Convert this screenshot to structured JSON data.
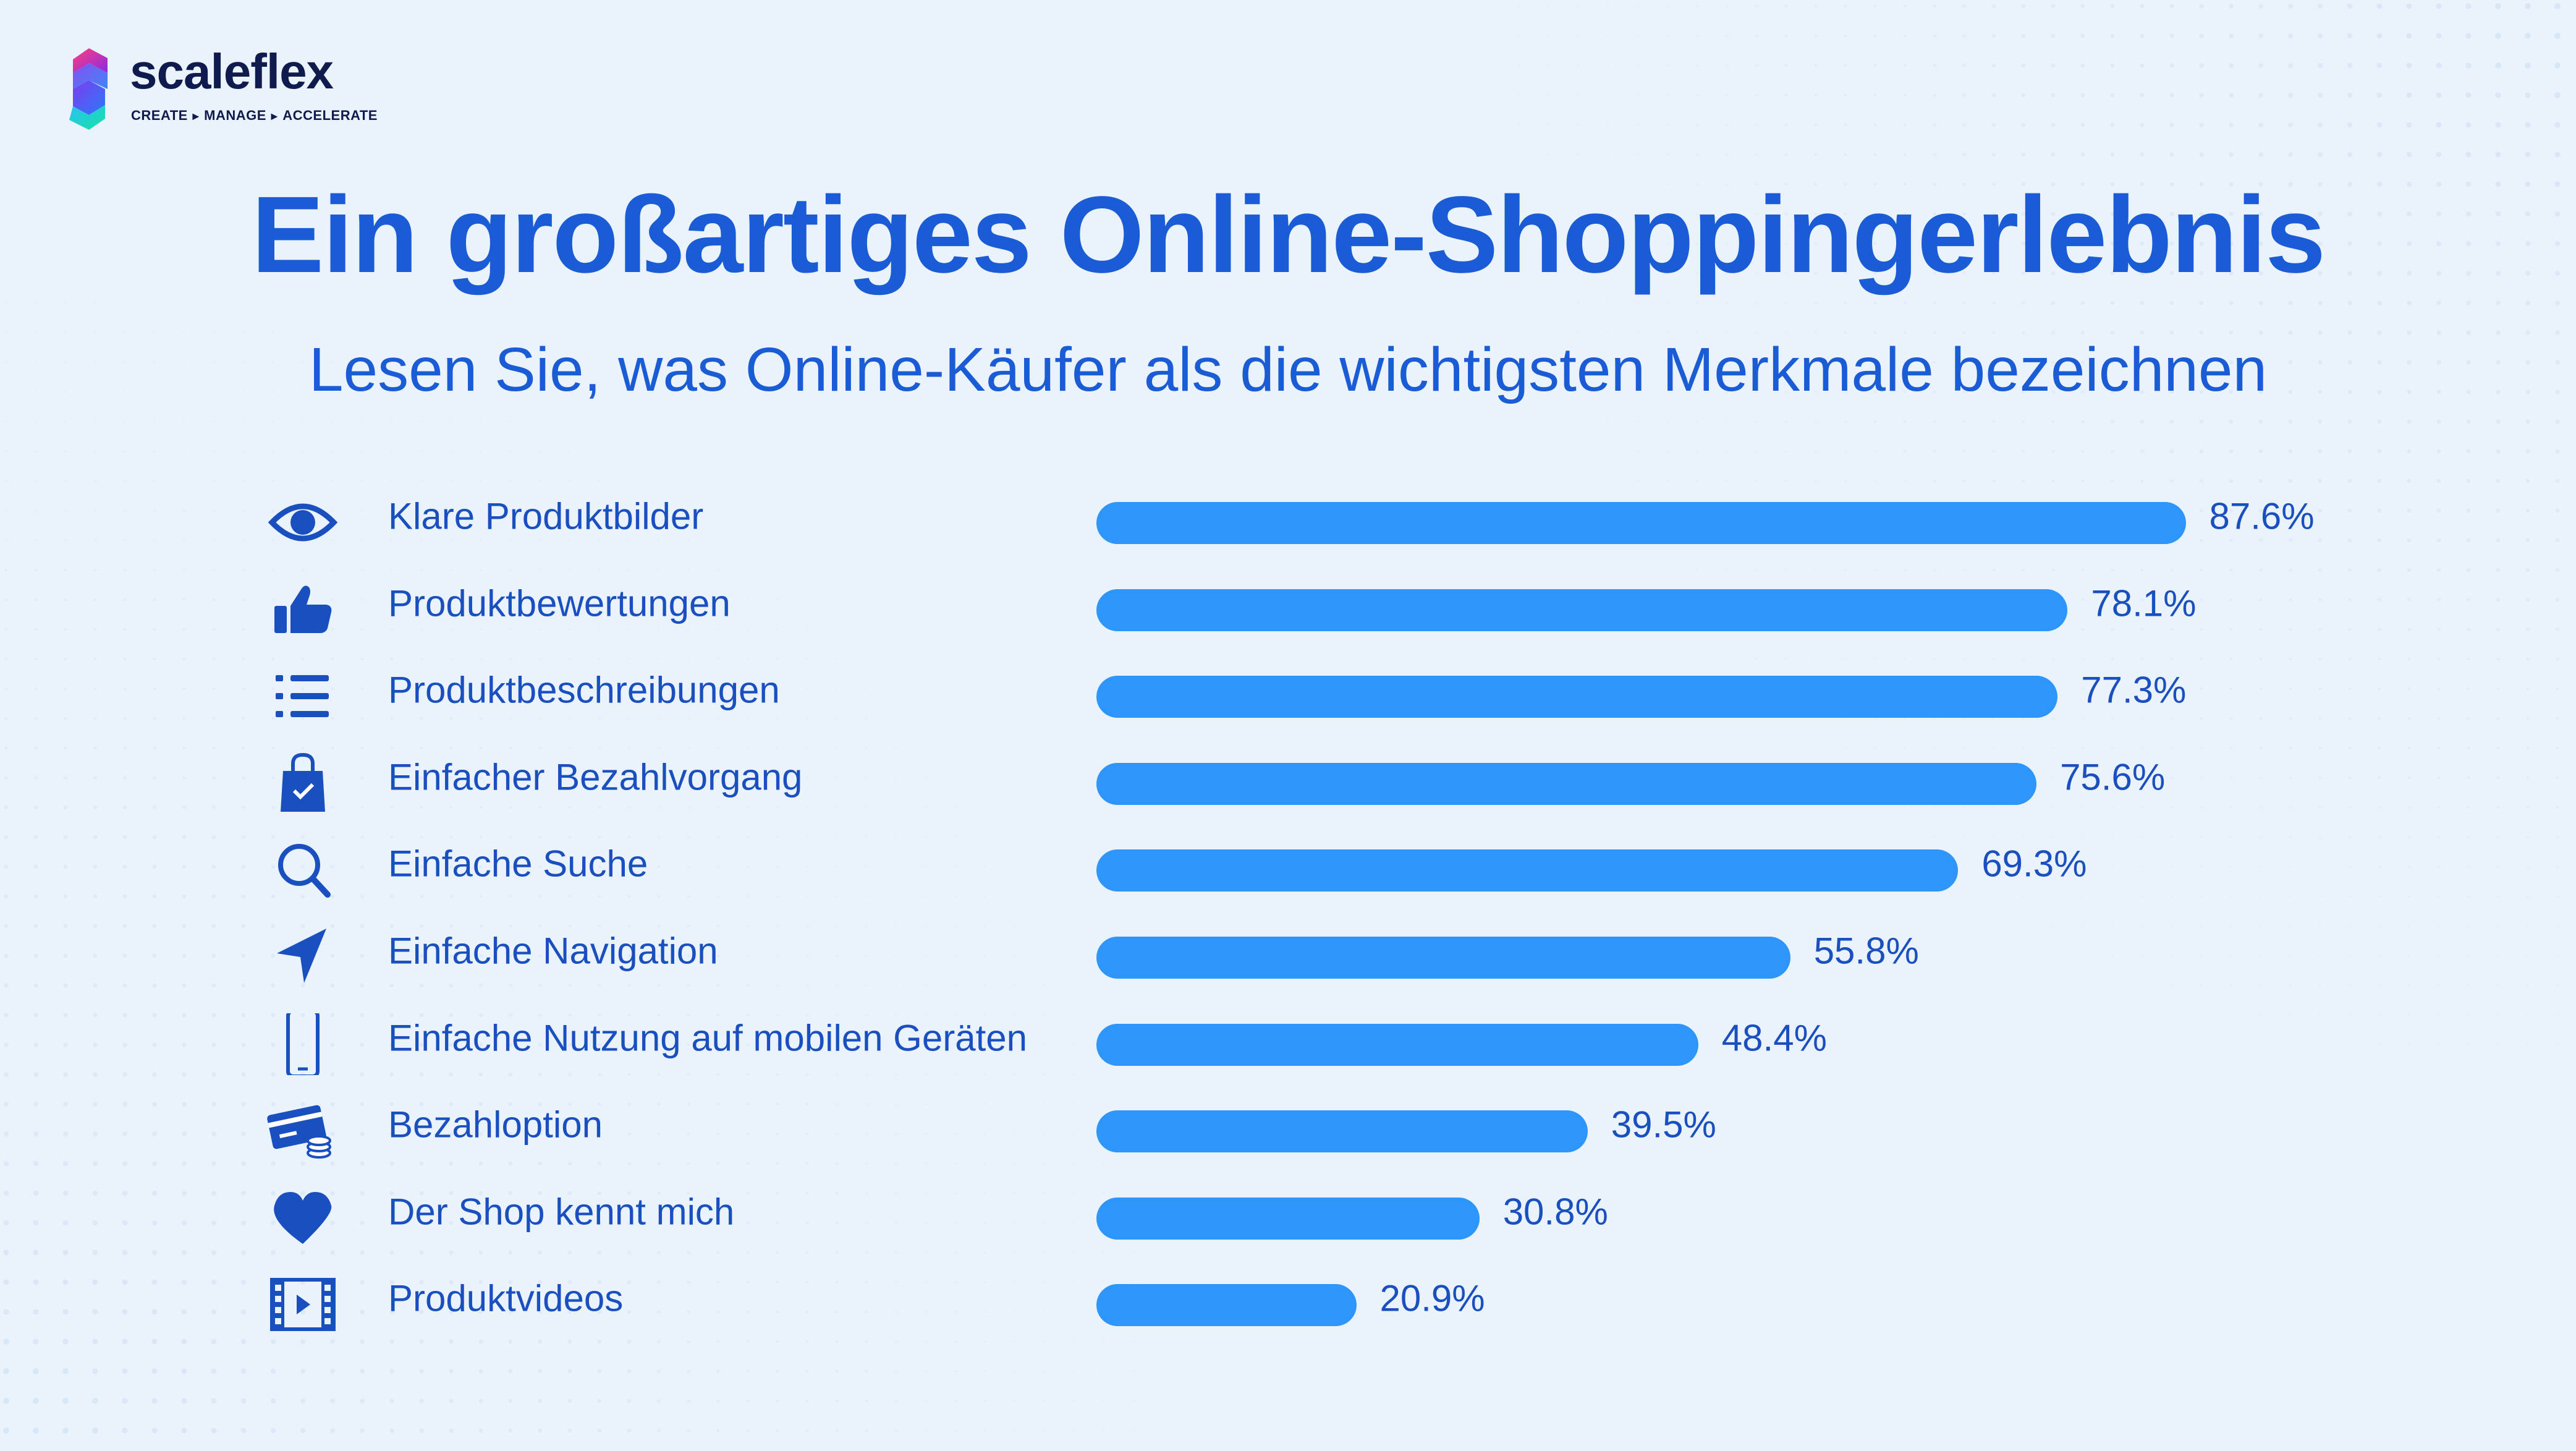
{
  "brand": {
    "name": "scaleflex",
    "tagline": [
      "CREATE",
      "MANAGE",
      "ACCELERATE"
    ]
  },
  "chart_data": {
    "type": "bar",
    "orientation": "horizontal",
    "title": "Ein großartiges Online-Shoppingerlebnis",
    "subtitle": "Lesen Sie, was Online-Käufer als die wichtigsten Merkmale bezeichnen",
    "categories": [
      "Klare Produktbilder",
      "Produktbewertungen",
      "Produktbeschreibungen",
      "Einfacher Bezahlvorgang",
      "Einfache Suche",
      "Einfache Navigation",
      "Einfache Nutzung auf mobilen Geräten",
      "Bezahloption",
      "Der Shop kennt mich",
      "Produktvideos"
    ],
    "values": [
      87.6,
      78.1,
      77.3,
      75.6,
      69.3,
      55.8,
      48.4,
      39.5,
      30.8,
      20.9
    ],
    "value_labels": [
      "87.6%",
      "78.1%",
      "77.3%",
      "75.6%",
      "69.3%",
      "55.8%",
      "48.4%",
      "39.5%",
      "30.8%",
      "20.9%"
    ],
    "icons": [
      "eye-icon",
      "thumbs-up-icon",
      "list-icon",
      "shopping-bag-icon",
      "search-icon",
      "navigation-arrow-icon",
      "smartphone-icon",
      "credit-card-coins-icon",
      "heart-icon",
      "video-icon"
    ],
    "xlim": [
      0,
      100
    ],
    "grid": false,
    "legend": "none",
    "bar_color": "#2e96fa",
    "text_color": "#1a5bd6"
  }
}
